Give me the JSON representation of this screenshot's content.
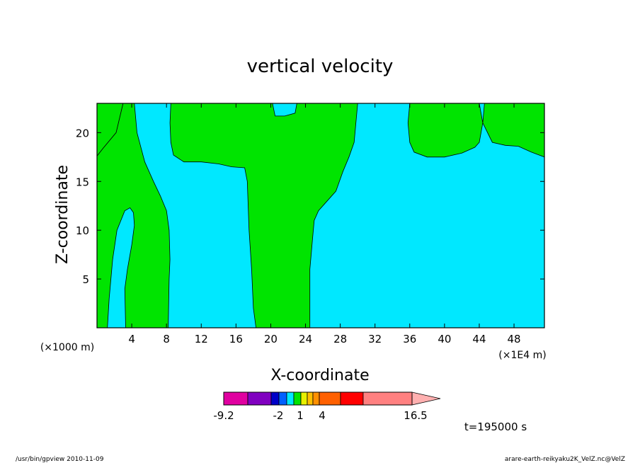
{
  "chart_data": {
    "type": "heatmap",
    "title": "vertical velocity",
    "xlabel": "X-coordinate",
    "ylabel": "Z-coordinate",
    "x_unit_left": "(×1000 m)",
    "x_unit_right": "(×1E4 m)",
    "xlim": [
      0,
      51.5
    ],
    "ylim": [
      0,
      23
    ],
    "x_ticks": [
      4,
      8,
      12,
      16,
      20,
      24,
      28,
      32,
      36,
      40,
      44,
      48
    ],
    "y_ticks": [
      5,
      10,
      15,
      20
    ],
    "background_region_color": "#00e8ff",
    "regions": [
      {
        "level": "positive",
        "color": "#00e400",
        "boundary": [
          [
            3,
            23
          ],
          [
            4.3,
            23
          ],
          [
            4.6,
            20
          ],
          [
            5.5,
            17
          ],
          [
            6.5,
            15
          ],
          [
            7.3,
            13.5
          ],
          [
            8,
            12
          ],
          [
            8.3,
            10
          ],
          [
            8.4,
            7
          ],
          [
            8.3,
            5
          ],
          [
            8.2,
            0
          ],
          [
            3.3,
            0
          ],
          [
            3.2,
            4
          ],
          [
            3.5,
            6
          ],
          [
            4,
            8.5
          ],
          [
            4.3,
            10.5
          ],
          [
            4.2,
            11.8
          ],
          [
            3.8,
            12.3
          ],
          [
            3.2,
            12
          ],
          [
            2.3,
            10
          ],
          [
            1.8,
            7
          ],
          [
            1.4,
            3
          ],
          [
            1.2,
            0
          ],
          [
            0,
            0
          ],
          [
            0,
            17.6
          ],
          [
            0.7,
            18.4
          ],
          [
            2.2,
            20
          ],
          [
            3,
            23
          ]
        ]
      },
      {
        "level": "positive",
        "color": "#00e400",
        "boundary": [
          [
            15.5,
            23
          ],
          [
            8.5,
            23
          ],
          [
            8.4,
            21
          ],
          [
            8.5,
            19
          ],
          [
            8.8,
            17.7
          ],
          [
            10,
            17
          ],
          [
            12,
            17
          ],
          [
            14,
            16.8
          ],
          [
            15.5,
            16.5
          ],
          [
            17,
            16.4
          ],
          [
            17.3,
            15
          ],
          [
            17.5,
            10
          ],
          [
            17.8,
            6
          ],
          [
            18,
            2
          ],
          [
            18.3,
            0
          ],
          [
            24.5,
            0
          ],
          [
            24.5,
            6
          ],
          [
            24.8,
            9
          ],
          [
            25,
            11
          ],
          [
            25.5,
            12
          ],
          [
            26.5,
            13
          ],
          [
            27.5,
            14
          ],
          [
            28.3,
            16
          ],
          [
            29,
            17.5
          ],
          [
            29.6,
            19
          ],
          [
            30,
            23
          ],
          [
            23,
            23
          ],
          [
            22.8,
            22
          ],
          [
            21.6,
            21.7
          ],
          [
            20.5,
            21.7
          ],
          [
            20.2,
            23
          ],
          [
            15.5,
            23
          ]
        ]
      },
      {
        "level": "positive",
        "color": "#00e400",
        "boundary": [
          [
            36,
            23
          ],
          [
            35.8,
            21
          ],
          [
            36,
            19
          ],
          [
            36.5,
            18
          ],
          [
            38,
            17.5
          ],
          [
            40,
            17.5
          ],
          [
            42,
            17.9
          ],
          [
            43.5,
            18.5
          ],
          [
            44,
            19
          ],
          [
            44.4,
            21
          ],
          [
            44.6,
            23
          ],
          [
            51.5,
            23
          ],
          [
            51.5,
            17.5
          ],
          [
            50,
            18
          ],
          [
            48.5,
            18.6
          ],
          [
            47,
            18.7
          ],
          [
            45.5,
            19
          ],
          [
            44.4,
            21
          ],
          [
            44,
            23
          ],
          [
            36,
            23
          ]
        ]
      },
      {
        "level": "positive",
        "color": "#00e400",
        "boundary": [
          [
            0,
            17.6
          ],
          [
            0,
            23
          ],
          [
            3,
            23
          ],
          [
            2.2,
            20
          ],
          [
            0.7,
            18.4
          ],
          [
            0,
            17.6
          ]
        ]
      }
    ],
    "colorbar": {
      "segments": [
        {
          "color": "#e000a0"
        },
        {
          "color": "#8000c0"
        },
        {
          "color": "#0000c8"
        },
        {
          "color": "#0060ff"
        },
        {
          "color": "#00e8ff"
        },
        {
          "color": "#00e400"
        },
        {
          "color": "#e8f000"
        },
        {
          "color": "#ffc000"
        },
        {
          "color": "#ff9000"
        },
        {
          "color": "#ff6000"
        },
        {
          "color": "#ff0000"
        },
        {
          "color": "#ff8080"
        },
        {
          "color": "#ffb0b0"
        }
      ],
      "labels": [
        "-9.2",
        "-2",
        "1",
        "4",
        "16.5"
      ]
    }
  },
  "annotations": {
    "time_label": "t=195000 s",
    "footer_left": "/usr/bin/gpview  2010-11-09",
    "footer_right": "arare-earth-reikyaku2K_VelZ.nc@VelZ"
  }
}
